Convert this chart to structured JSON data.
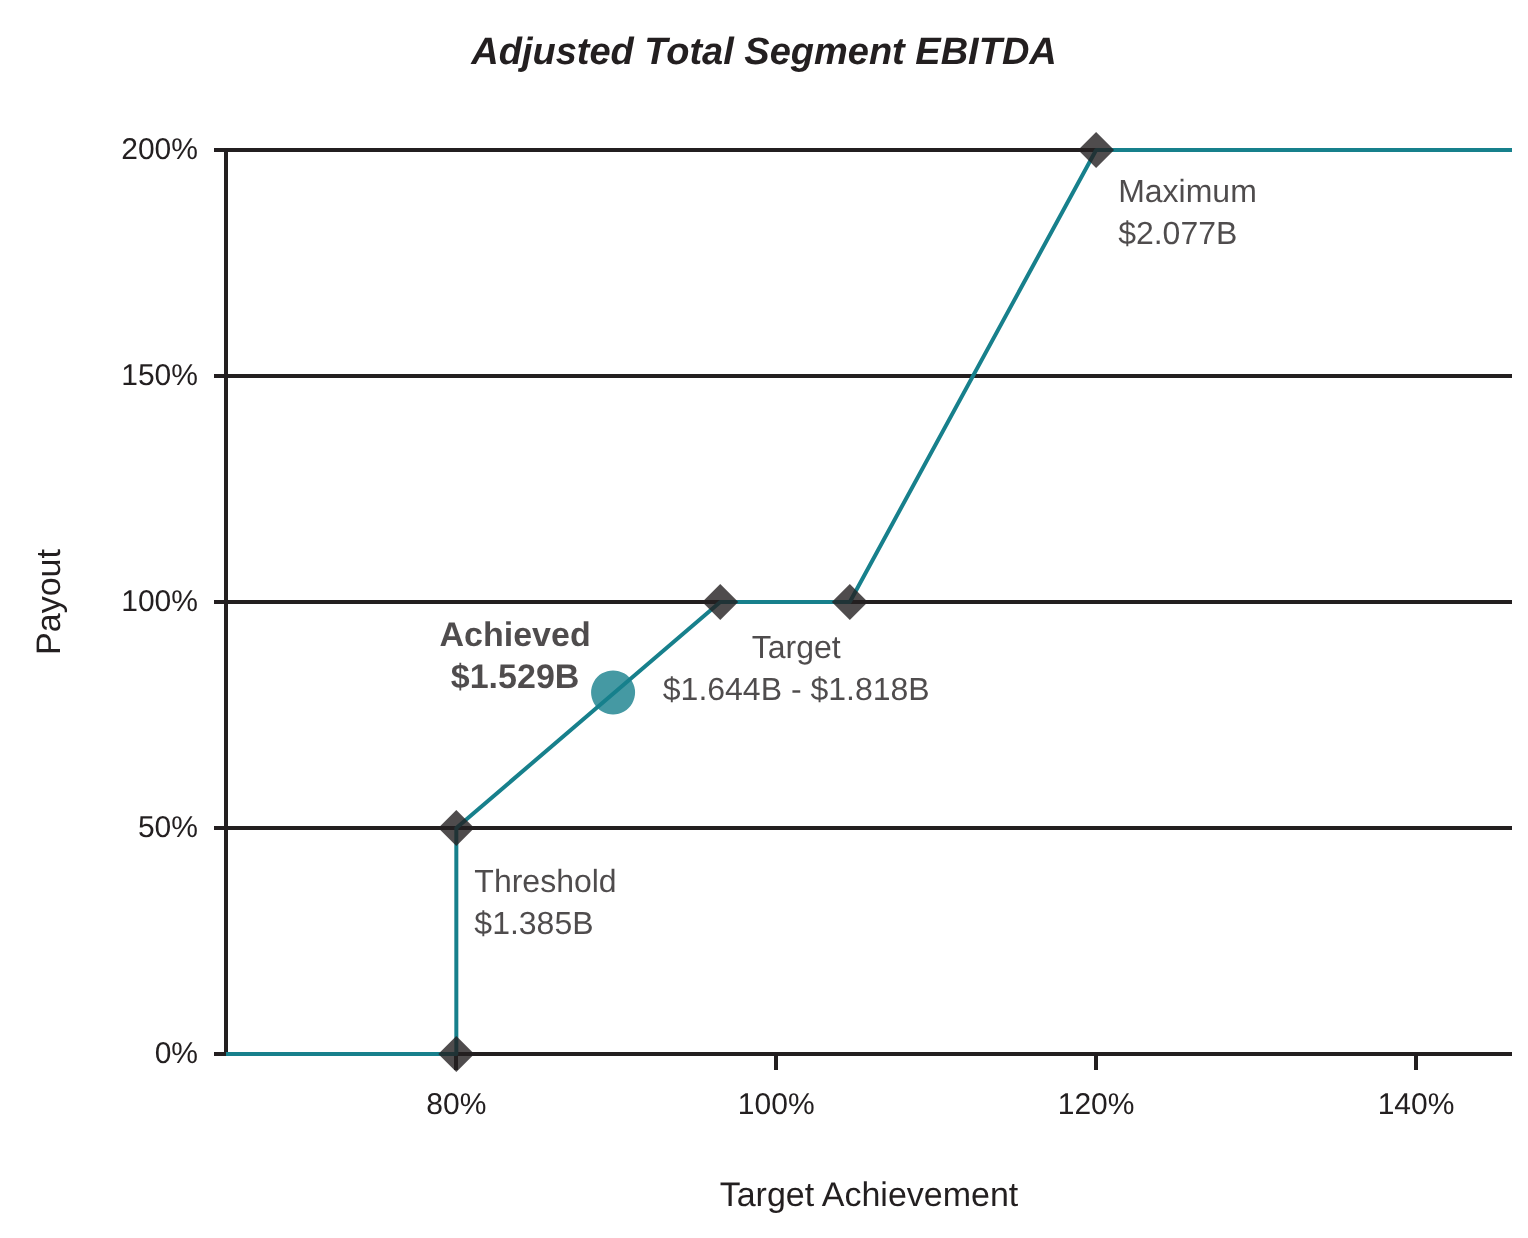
{
  "chart_data": {
    "type": "line",
    "title": "Adjusted Total Segment EBITDA",
    "xlabel": "Target Achievement",
    "ylabel": "Payout",
    "xlim": [
      65.6,
      146
    ],
    "ylim": [
      0,
      200
    ],
    "xticks": [
      {
        "value": 80,
        "label": "80%"
      },
      {
        "value": 100,
        "label": "100%"
      },
      {
        "value": 120,
        "label": "120%"
      },
      {
        "value": 140,
        "label": "140%"
      }
    ],
    "yticks": [
      {
        "value": 0,
        "label": "0%"
      },
      {
        "value": 50,
        "label": "50%"
      },
      {
        "value": 100,
        "label": "100%"
      },
      {
        "value": 150,
        "label": "150%"
      },
      {
        "value": 200,
        "label": "200%"
      }
    ],
    "grid": "y",
    "series": [
      {
        "color": "#17808c",
        "marker": "none",
        "x": [
          65.6,
          80,
          80,
          96.5,
          104.6,
          120,
          146
        ],
        "values": [
          0,
          0,
          50,
          100,
          100,
          200,
          200
        ]
      },
      {
        "type": "scatter",
        "color": "#231f20",
        "marker": "diamond",
        "x": [
          80,
          80,
          96.5,
          104.6,
          120
        ],
        "values": [
          0,
          50,
          100,
          100,
          200
        ]
      },
      {
        "type": "scatter",
        "color": "#17808c",
        "marker": "circle",
        "x": [
          89.8
        ],
        "values": [
          80
        ]
      }
    ],
    "annotations": [
      {
        "text": "Maximum\n$2.077B",
        "x": 120,
        "y": 200
      },
      {
        "text": "Target\n$1.644B - $1.818B",
        "x": 100,
        "y": 100
      },
      {
        "text": "Threshold\n$1.385B",
        "x": 80,
        "y": 50
      },
      {
        "text": "Achieved\n$1.529B",
        "x": 89.8,
        "y": 80
      }
    ]
  }
}
